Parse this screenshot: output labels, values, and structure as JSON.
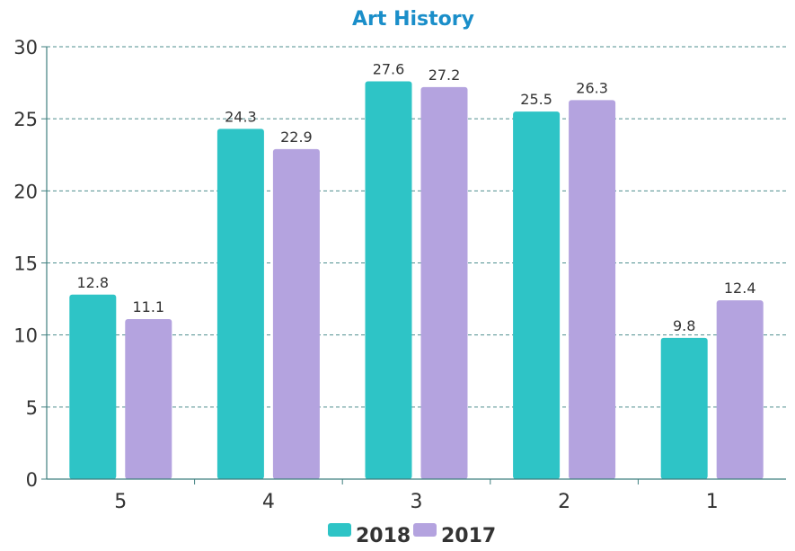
{
  "chart_data": {
    "type": "bar",
    "title": "Art History",
    "xlabel": "",
    "ylabel": "",
    "categories": [
      "5",
      "4",
      "3",
      "2",
      "1"
    ],
    "series": [
      {
        "name": "2018",
        "values": [
          12.8,
          24.3,
          27.6,
          25.5,
          9.8
        ],
        "color": "#2ec4c6"
      },
      {
        "name": "2017",
        "values": [
          11.1,
          22.9,
          27.2,
          26.3,
          12.4
        ],
        "color": "#b4a3df"
      }
    ],
    "ylim": [
      0,
      30
    ],
    "yticks": [
      0,
      5,
      10,
      15,
      20,
      25,
      30
    ],
    "grid": true,
    "legend_position": "bottom",
    "title_color": "#1a8ec9",
    "axis_color": "#3f7f7f",
    "grid_color": "#4f8f8f"
  }
}
